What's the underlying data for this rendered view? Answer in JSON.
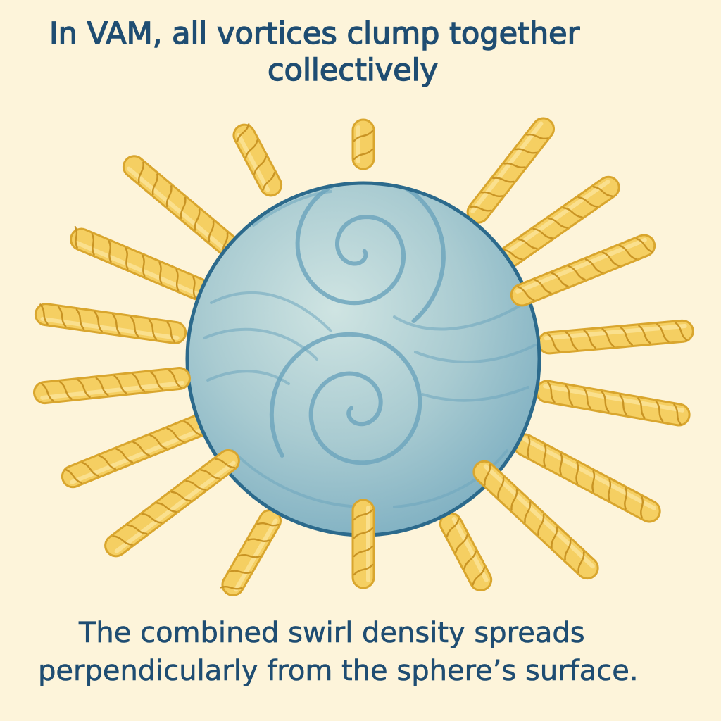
{
  "title": {
    "line1": "In VAM, all vortices clump together",
    "line2": "collectively"
  },
  "caption": {
    "line1": "The combined swirl density spreads",
    "line2": "perpendicularly from the sphere’s surface."
  },
  "colors": {
    "background": "#fdf4da",
    "text": "#1f4d72",
    "sphere_fill": "#a9cbd1",
    "sphere_outline": "#2c6a8c",
    "swirl": "#6ea6bd",
    "strand_fill": "#f5cf62",
    "strand_outline": "#d9a62e",
    "strand_twist": "#c99424"
  },
  "icons": {
    "sphere": "vortex-sphere-icon",
    "strand": "twisted-strand-icon"
  }
}
